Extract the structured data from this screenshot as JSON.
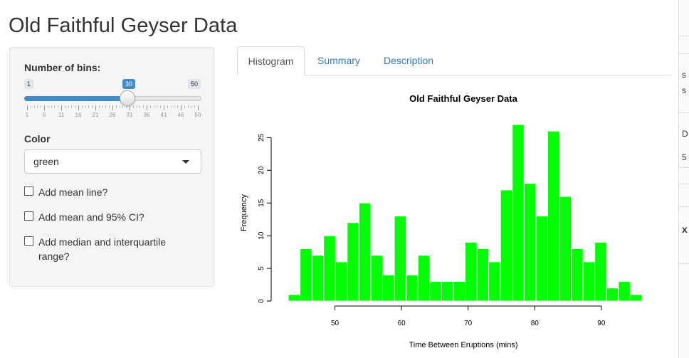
{
  "app": {
    "title": "Old Faithful Geyser Data"
  },
  "sidebar": {
    "bins": {
      "label": "Number of bins:",
      "min": "1",
      "max": "50",
      "value": "30",
      "value_fraction": 0.592,
      "tick_labels": [
        "1",
        "6",
        "11",
        "16",
        "21",
        "26",
        "31",
        "36",
        "41",
        "46",
        "50"
      ]
    },
    "color": {
      "label": "Color",
      "selected": "green"
    },
    "checkboxes": [
      {
        "label": "Add mean line?",
        "checked": false
      },
      {
        "label": "Add mean and 95% CI?",
        "checked": false
      },
      {
        "label": "Add median and interquartile range?",
        "checked": false
      }
    ]
  },
  "tabs": [
    {
      "label": "Histogram",
      "active": true
    },
    {
      "label": "Summary",
      "active": false
    },
    {
      "label": "Description",
      "active": false
    }
  ],
  "chart_data": {
    "type": "bar",
    "title": "Old Faithful Geyser Data",
    "xlabel": "Time Between Eruptions (mins)",
    "ylabel": "Frequency",
    "bar_color": "#00ff00",
    "bin_start": 43,
    "bin_width": 1.77,
    "values": [
      1,
      8,
      7,
      10,
      6,
      12,
      15,
      7,
      4,
      13,
      4,
      7,
      3,
      3,
      3,
      9,
      8,
      6,
      17,
      27,
      18,
      13,
      26,
      16,
      8,
      6,
      9,
      2,
      3,
      1
    ],
    "xlim": [
      43,
      96
    ],
    "ylim": [
      0,
      27
    ],
    "xticks": [
      50,
      60,
      70,
      80,
      90
    ],
    "yticks": [
      0,
      5,
      10,
      15,
      20,
      25
    ],
    "grid": false
  },
  "right_strip": {
    "chars": [
      "s",
      "s",
      "D",
      "5",
      "x"
    ]
  }
}
